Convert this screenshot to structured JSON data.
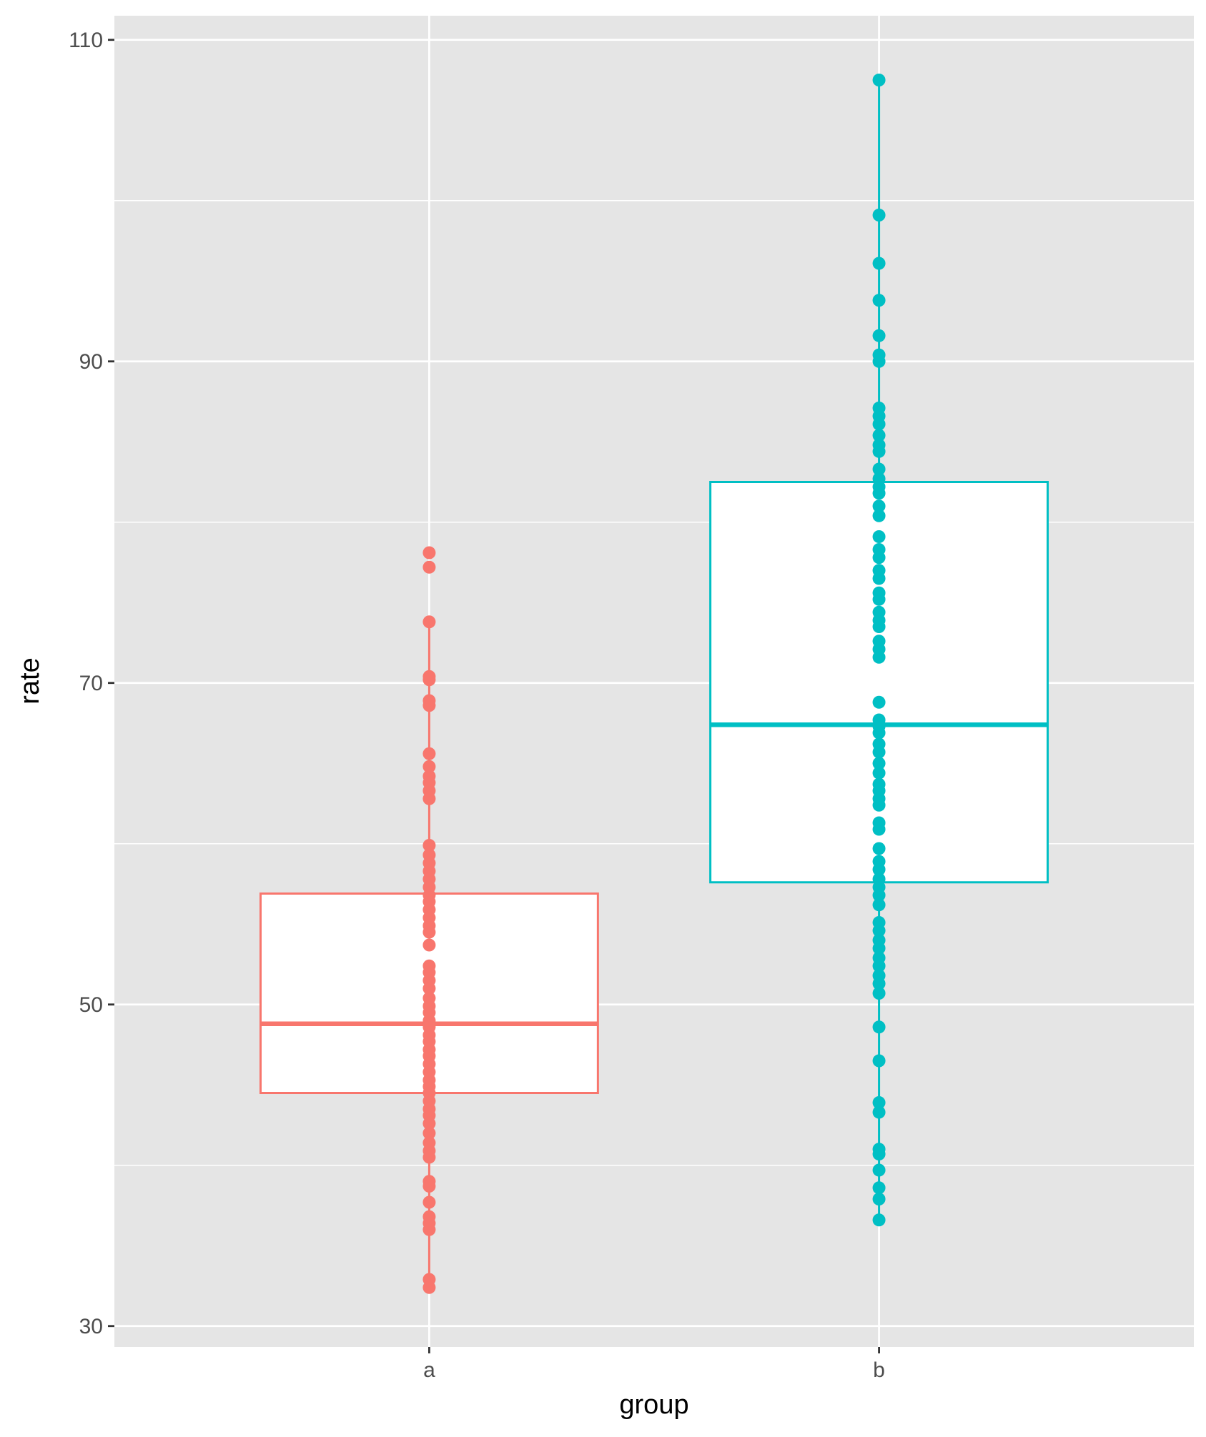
{
  "chart_data": {
    "type": "box",
    "title": "",
    "xlabel": "group",
    "ylabel": "rate",
    "categories": [
      "a",
      "b"
    ],
    "ylim": [
      28.7,
      111.5
    ],
    "yticks": [
      30,
      50,
      70,
      90,
      110
    ],
    "grid": true,
    "legend": "none",
    "series": [
      {
        "group": "a",
        "color": "#F8766D",
        "box": {
          "q1": 44.5,
          "median": 48.8,
          "q3": 56.9,
          "whisker_low": 32.4,
          "whisker_high": 73.8
        },
        "points": [
          78.1,
          77.2,
          73.8,
          70.4,
          70.2,
          68.9,
          68.6,
          65.6,
          64.8,
          64.2,
          63.8,
          63.3,
          62.8,
          59.9,
          59.3,
          58.8,
          58.3,
          57.8,
          57.3,
          56.8,
          56.4,
          55.9,
          55.4,
          54.9,
          54.5,
          53.7,
          52.4,
          52.0,
          51.5,
          51.0,
          50.4,
          49.9,
          49.5,
          49.0,
          48.6,
          48.1,
          47.7,
          47.2,
          46.8,
          46.3,
          45.8,
          45.3,
          44.9,
          44.5,
          44.0,
          43.5,
          43.1,
          42.6,
          42.0,
          41.4,
          40.9,
          40.5,
          39.0,
          38.7,
          37.7,
          36.8,
          36.4,
          36.0,
          32.9,
          32.4
        ]
      },
      {
        "group": "b",
        "color": "#00BFC4",
        "box": {
          "q1": 57.6,
          "median": 67.4,
          "q3": 82.5,
          "whisker_low": 36.5,
          "whisker_high": 107.5
        },
        "points": [
          107.5,
          99.1,
          96.1,
          93.8,
          91.6,
          90.4,
          90.0,
          87.1,
          86.6,
          86.1,
          85.4,
          84.8,
          84.4,
          83.3,
          82.7,
          82.2,
          81.8,
          81.0,
          80.4,
          79.1,
          78.3,
          77.8,
          77.0,
          76.5,
          75.6,
          75.2,
          74.4,
          73.9,
          73.5,
          72.6,
          72.1,
          71.6,
          68.8,
          67.7,
          67.3,
          66.9,
          66.2,
          65.7,
          65.0,
          64.4,
          63.7,
          63.3,
          62.8,
          62.4,
          61.3,
          60.9,
          59.7,
          58.9,
          58.4,
          57.8,
          57.3,
          56.8,
          56.2,
          55.1,
          54.6,
          54.0,
          53.5,
          52.9,
          52.4,
          51.8,
          51.3,
          50.7,
          48.6,
          46.5,
          43.9,
          43.3,
          41.0,
          40.7,
          39.7,
          38.6,
          37.9,
          36.6
        ]
      }
    ]
  }
}
